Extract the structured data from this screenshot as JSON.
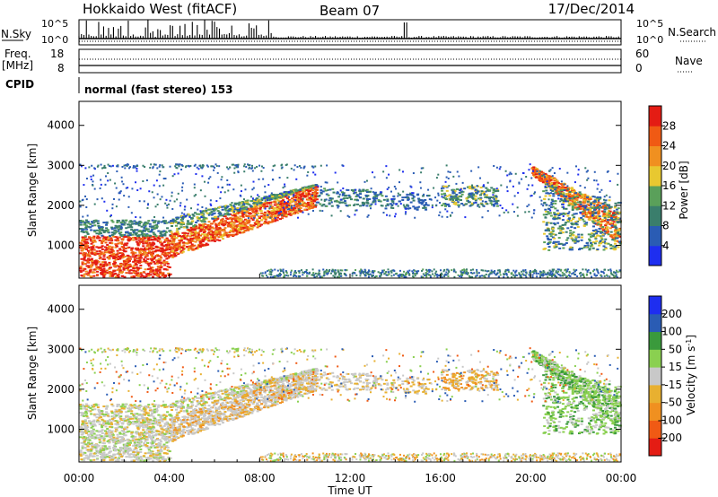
{
  "header": {
    "title": "Hokkaido West (fitACF)",
    "beam": "Beam 07",
    "date": "17/Dec/2014"
  },
  "top_panels": {
    "nsky_label": "N.Sky",
    "nsearch_label": "N.Search",
    "noise_ticks": [
      "10^5",
      "10^0"
    ],
    "freq_label": "Freq.",
    "freq_unit": "[MHz]",
    "freq_ticks": [
      "18",
      "8"
    ],
    "nave_label": "Nave",
    "nave_ticks": [
      "60",
      "0"
    ],
    "cpid_label": "CPID",
    "cpid_text": "normal (fast stereo) 153"
  },
  "colors": {
    "power": [
      "#1e2ef0",
      "#2a5cb4",
      "#3a7e6c",
      "#5aa05a",
      "#e8c830",
      "#f09020",
      "#f05a14",
      "#e41c14"
    ],
    "velocity": [
      "#e41c14",
      "#f05a14",
      "#f09020",
      "#e8b030",
      "#c8c8c8",
      "#8ad050",
      "#3a9a3c",
      "#2a5cb4",
      "#1e2ef0"
    ]
  },
  "chart_data": [
    {
      "type": "heatmap",
      "title": "",
      "xlabel": "Time UT",
      "ylabel": "Slant Range [km]",
      "xlim": [
        "00:00",
        "24:00"
      ],
      "x_ticks": [
        "00:00",
        "04:00",
        "08:00",
        "12:00",
        "16:00",
        "20:00",
        "00:00"
      ],
      "ylim": [
        180,
        4600
      ],
      "y_ticks": [
        1000,
        2000,
        3000,
        4000
      ],
      "colorbar": {
        "label": "Power [dB]",
        "ticks": [
          4,
          8,
          12,
          16,
          20,
          24,
          28
        ],
        "range": [
          0,
          32
        ]
      },
      "regions": [
        {
          "t0": 0.0,
          "t1": 4.0,
          "r0": 200,
          "r1": 1300,
          "value": "high power (24-30 dB)"
        },
        {
          "t0": 0.0,
          "t1": 4.0,
          "r0": 1300,
          "r1": 1650,
          "value": "low-mid power (4-12 dB)"
        },
        {
          "t0": 4.0,
          "t1": 10.5,
          "r0": 700,
          "r1": 2500,
          "value": "ascending band, 16-28 dB"
        },
        {
          "t0": 10.5,
          "t1": 18.5,
          "r0": 1800,
          "r1": 2500,
          "value": "patchy 4-16 dB"
        },
        {
          "t0": 20.0,
          "t1": 24.0,
          "r0": 800,
          "r1": 2900,
          "value": "descending band, 16-28 dB"
        },
        {
          "t0": 0.0,
          "t1": 24.0,
          "r0": 200,
          "r1": 400,
          "value": "near-range ground scatter"
        }
      ]
    },
    {
      "type": "heatmap",
      "title": "",
      "xlabel": "Time UT",
      "ylabel": "Slant Range [km]",
      "xlim": [
        "00:00",
        "24:00"
      ],
      "x_ticks": [
        "00:00",
        "04:00",
        "08:00",
        "12:00",
        "16:00",
        "20:00",
        "00:00"
      ],
      "ylim": [
        180,
        4600
      ],
      "y_ticks": [
        1000,
        2000,
        3000,
        4000
      ],
      "colorbar": {
        "label": "Velocity [m s^-1]",
        "ticks": [
          200,
          100,
          50,
          15,
          -15,
          -50,
          -100,
          -200
        ],
        "range": [
          -250,
          250
        ]
      },
      "regions": [
        {
          "t0": 0.0,
          "t1": 11.0,
          "r0": 200,
          "r1": 2500,
          "value": "mostly ground scatter (-15 to 15)"
        },
        {
          "t0": 20.0,
          "t1": 24.0,
          "r0": 900,
          "r1": 2900,
          "value": "positive 15-100 m/s"
        },
        {
          "t0": 16.0,
          "t1": 18.5,
          "r0": 2000,
          "r1": 2500,
          "value": "-15 to -50 m/s"
        }
      ]
    }
  ]
}
